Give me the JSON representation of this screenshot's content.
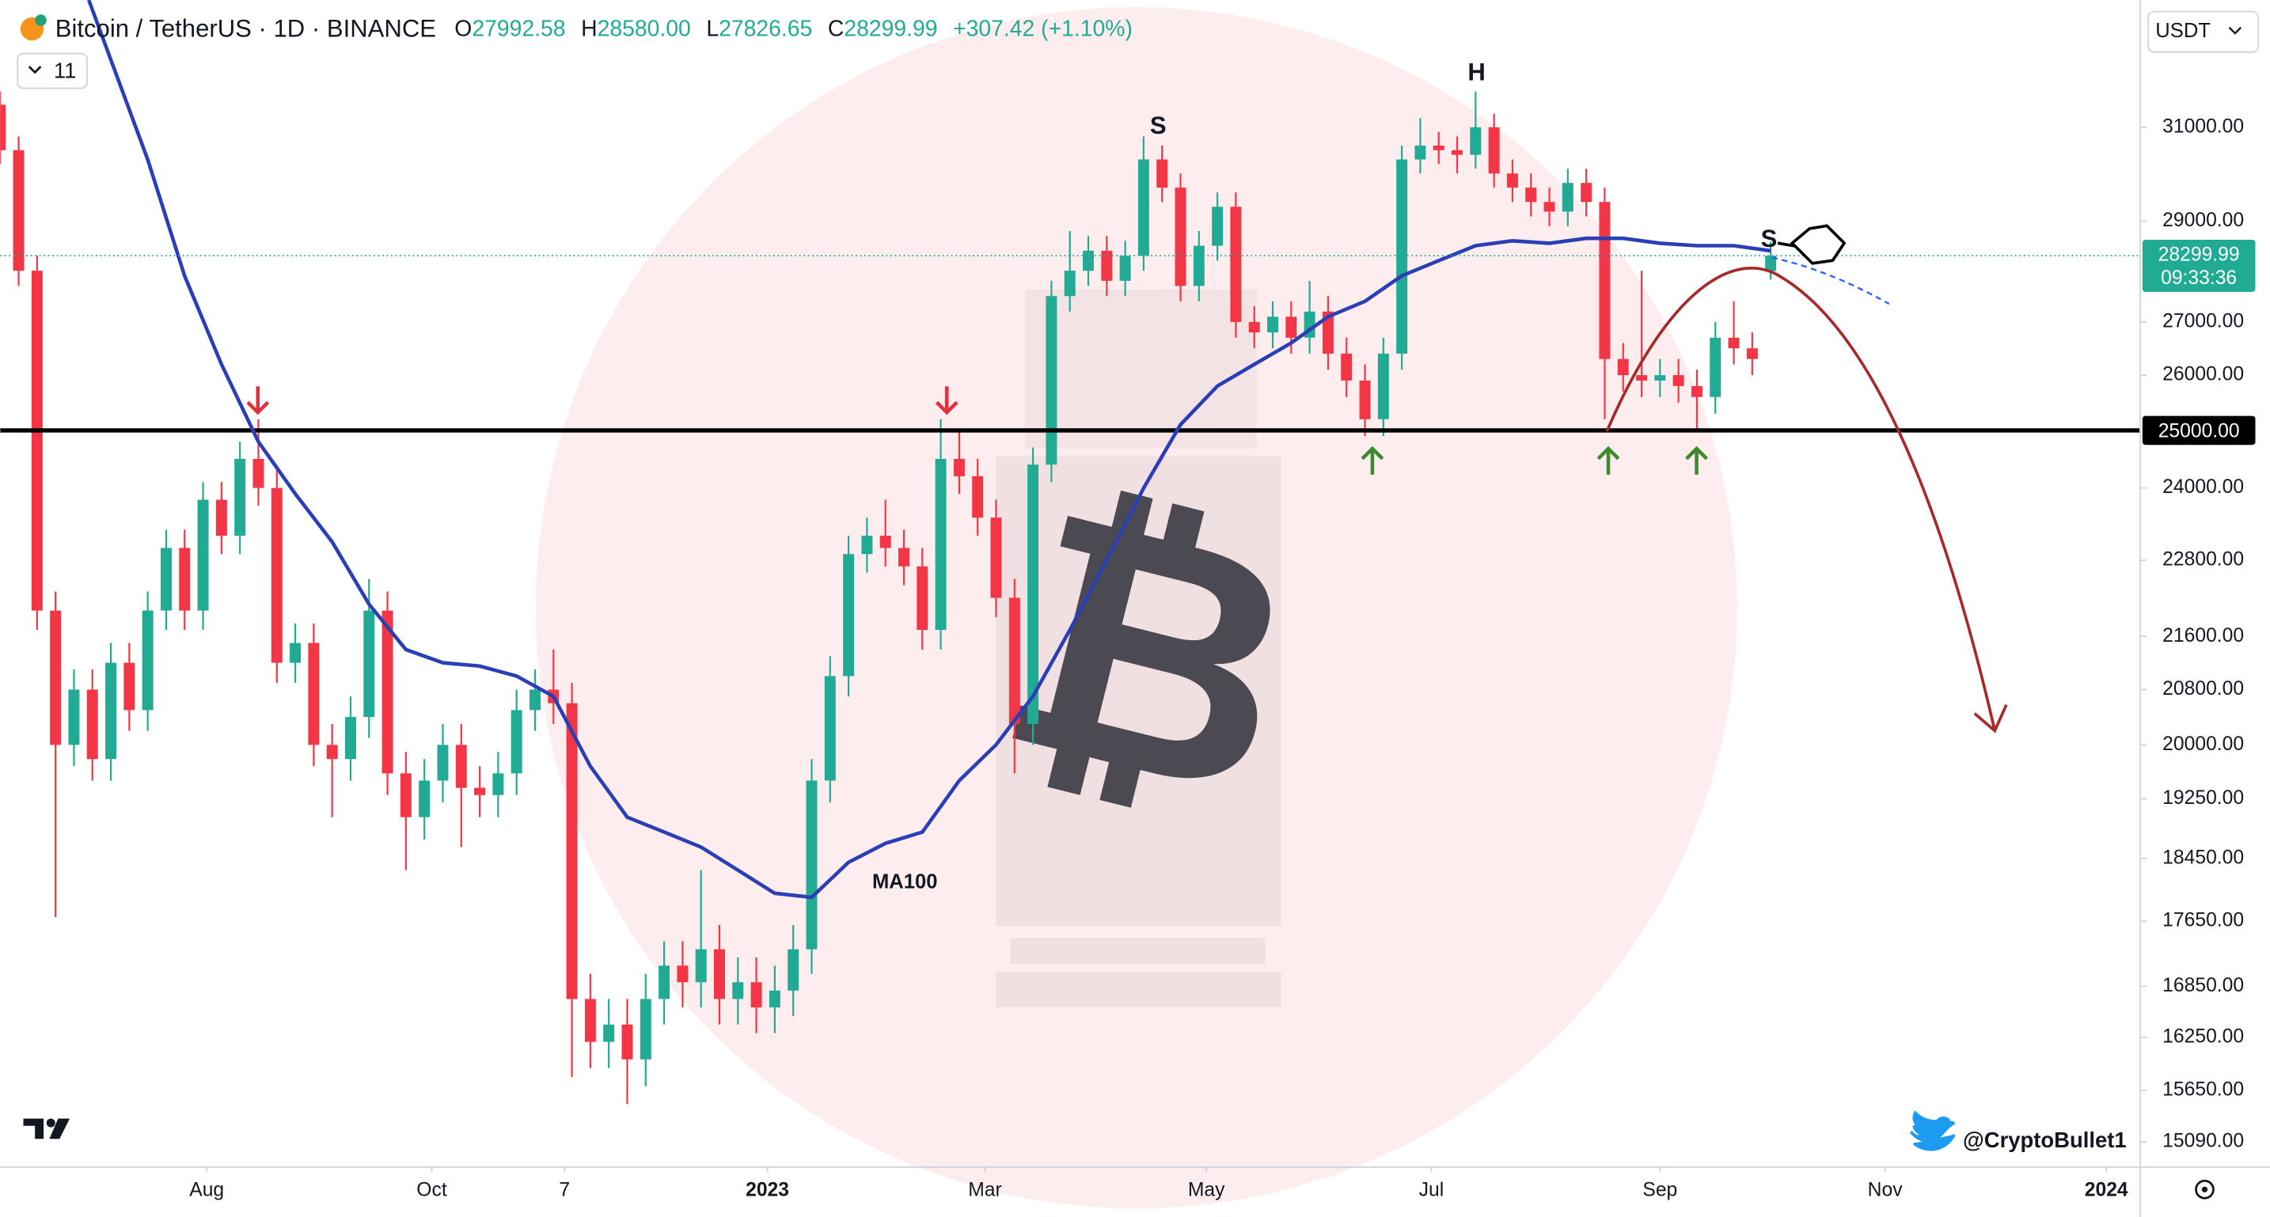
{
  "header": {
    "symbol": "Bitcoin / TetherUS · 1D · BINANCE",
    "open_key": "O",
    "open": "27992.58",
    "high_key": "H",
    "high": "28580.00",
    "low_key": "L",
    "low": "27826.65",
    "close_key": "C",
    "close": "28299.99",
    "change": "+307.42 (+1.10%)",
    "indicators_count": "11",
    "currency": "USDT",
    "watermark": "@CryptoBullet1"
  },
  "chart_data": {
    "type": "candlestick",
    "log_scale": true,
    "up_color": "#22ab94",
    "down_color": "#f23645",
    "x": [
      0,
      5,
      10,
      15,
      20,
      25,
      30,
      35,
      40,
      45,
      50,
      55,
      60,
      65,
      70,
      75,
      80,
      85,
      90,
      95,
      100,
      105,
      110,
      115,
      120,
      125,
      130,
      135,
      140,
      145,
      150,
      155,
      160,
      165,
      170,
      175,
      180,
      185,
      190,
      195,
      200,
      205,
      210,
      215,
      220,
      225,
      230,
      235,
      240,
      245,
      250,
      255,
      260,
      265,
      270,
      275,
      280,
      285,
      290,
      295,
      300,
      305,
      310,
      315,
      320,
      325,
      330,
      335,
      340,
      345,
      350,
      355,
      360,
      365,
      370,
      375,
      380,
      385,
      390,
      395,
      400,
      405,
      410,
      415,
      420,
      425,
      430,
      435,
      440,
      445,
      450,
      455,
      460,
      465,
      470,
      475,
      480
    ],
    "open": [
      31500,
      30500,
      28000,
      22000,
      20000,
      20800,
      19800,
      21200,
      20500,
      22000,
      23000,
      22000,
      23800,
      23200,
      24500,
      24000,
      21200,
      21500,
      20000,
      19800,
      20400,
      22000,
      19600,
      19000,
      19500,
      20000,
      19400,
      19300,
      19600,
      20500,
      20800,
      20600,
      16700,
      16200,
      16400,
      16000,
      16700,
      17100,
      16900,
      17300,
      16700,
      16900,
      16600,
      16800,
      17300,
      19500,
      21000,
      22900,
      23200,
      23000,
      22700,
      21700,
      24500,
      24200,
      23500,
      22200,
      20300,
      24400,
      27500,
      28000,
      28400,
      27800,
      28300,
      30300,
      29700,
      27700,
      28500,
      29300,
      27000,
      26800,
      27100,
      26700,
      27200,
      26400,
      25900,
      25200,
      26400,
      30300,
      30600,
      30500,
      30400,
      31000,
      30000,
      29700,
      29400,
      29200,
      29800,
      29400,
      26300,
      26000,
      25900,
      26000,
      25800,
      25600,
      26700,
      26500,
      27992.58
    ],
    "high": [
      31800,
      30800,
      28300,
      22300,
      21100,
      21100,
      21500,
      21500,
      22300,
      23300,
      23300,
      24100,
      24100,
      24800,
      25200,
      24300,
      21800,
      21800,
      20300,
      20700,
      22500,
      22300,
      19900,
      19800,
      20300,
      20300,
      19700,
      19900,
      20800,
      21100,
      21400,
      20900,
      17000,
      16700,
      16700,
      17000,
      17400,
      17400,
      18300,
      17600,
      17200,
      17200,
      17100,
      17600,
      19800,
      21300,
      23200,
      23500,
      23800,
      23300,
      23000,
      25200,
      25000,
      24500,
      23800,
      22500,
      24700,
      27800,
      28800,
      28700,
      28700,
      28600,
      30800,
      30600,
      30000,
      28800,
      29600,
      29600,
      27300,
      27400,
      27400,
      27800,
      27500,
      26700,
      26200,
      26700,
      30600,
      31200,
      30900,
      30800,
      31800,
      31300,
      30300,
      30000,
      29700,
      30100,
      30100,
      29700,
      26600,
      28000,
      26300,
      26300,
      26100,
      27000,
      27400,
      26800,
      28580
    ],
    "low": [
      30200,
      27700,
      21700,
      17700,
      19700,
      19500,
      19500,
      20200,
      20200,
      21700,
      21700,
      21700,
      22900,
      22900,
      23700,
      20900,
      20900,
      19700,
      19000,
      19500,
      20100,
      19300,
      18300,
      18700,
      19200,
      18600,
      19000,
      19000,
      19300,
      20200,
      20300,
      15800,
      15900,
      15900,
      15500,
      15700,
      16400,
      16600,
      16600,
      16400,
      16400,
      16300,
      16300,
      16500,
      17000,
      19200,
      20700,
      22600,
      22700,
      22400,
      21400,
      21400,
      23900,
      23200,
      21900,
      19600,
      20000,
      24100,
      27200,
      27700,
      27500,
      27500,
      28000,
      29400,
      27400,
      27400,
      28200,
      26700,
      26500,
      26500,
      26400,
      26400,
      26100,
      25600,
      24900,
      24900,
      26100,
      30000,
      30200,
      30000,
      30100,
      29700,
      29400,
      29100,
      28900,
      28900,
      29100,
      25200,
      25700,
      25600,
      25600,
      25500,
      25000,
      25300,
      26200,
      26000,
      27826.65
    ],
    "close": [
      30500,
      28000,
      22000,
      20000,
      20800,
      19800,
      21200,
      20500,
      22000,
      23000,
      22000,
      23800,
      23200,
      24500,
      24000,
      21200,
      21500,
      20000,
      19800,
      20400,
      22000,
      19600,
      19000,
      19500,
      20000,
      19400,
      19300,
      19600,
      20500,
      20800,
      20600,
      16700,
      16200,
      16400,
      16000,
      16700,
      17100,
      16900,
      17300,
      16700,
      16900,
      16600,
      16800,
      17300,
      19500,
      21000,
      22900,
      23200,
      23000,
      22700,
      21700,
      24500,
      24200,
      23500,
      22200,
      20300,
      24400,
      27500,
      28000,
      28400,
      27800,
      28300,
      30300,
      29700,
      27700,
      28500,
      29300,
      27000,
      26800,
      27100,
      26700,
      27200,
      26400,
      25900,
      25200,
      26400,
      30300,
      30600,
      30500,
      30400,
      31000,
      30000,
      29700,
      29400,
      29200,
      29800,
      29400,
      26300,
      26000,
      25900,
      26000,
      25800,
      25600,
      26700,
      26500,
      26300,
      28299.99
    ],
    "ma": {
      "name": "MA100",
      "color": "#2a3fb5",
      "x": [
        24,
        40,
        50,
        60,
        70,
        80,
        90,
        100,
        110,
        120,
        130,
        140,
        150,
        160,
        170,
        180,
        190,
        200,
        210,
        220,
        230,
        240,
        250,
        260,
        270,
        280,
        290,
        300,
        310,
        320,
        330,
        340,
        350,
        360,
        370,
        380,
        390,
        400,
        410,
        420,
        430,
        440,
        450,
        460,
        470,
        480
      ],
      "values": [
        33930,
        30300,
        27900,
        26200,
        24800,
        23900,
        23100,
        22100,
        21400,
        21200,
        21150,
        21000,
        20700,
        19700,
        19000,
        18800,
        18600,
        18300,
        18000,
        17950,
        18400,
        18650,
        18800,
        19500,
        20000,
        20700,
        21700,
        22800,
        24000,
        25100,
        25800,
        26200,
        26600,
        27100,
        27400,
        27900,
        28200,
        28500,
        28600,
        28550,
        28650,
        28650,
        28550,
        28500,
        28500,
        28400
      ]
    },
    "level": {
      "value": 25000,
      "label": "25000.00",
      "color": "#000000"
    },
    "last_price": {
      "label": "28299.99",
      "countdown": "09:33:36",
      "color": "#22ab94"
    },
    "pattern_labels": [
      "S",
      "H",
      "S"
    ],
    "xlim": [
      0,
      580
    ],
    "ylim": [
      14830,
      33930
    ],
    "xticks": [
      {
        "value": 56,
        "label": "Aug"
      },
      {
        "value": 117,
        "label": "Oct"
      },
      {
        "value": 153,
        "label": "7"
      },
      {
        "value": 208,
        "label": "2023"
      },
      {
        "value": 267,
        "label": "Mar"
      },
      {
        "value": 327,
        "label": "May"
      },
      {
        "value": 388,
        "label": "Jul"
      },
      {
        "value": 450,
        "label": "Sep"
      },
      {
        "value": 511,
        "label": "Nov"
      },
      {
        "value": 571,
        "label": "2024"
      }
    ],
    "yticks": [
      {
        "value": 31000,
        "label": "31000.00"
      },
      {
        "value": 29000,
        "label": "29000.00"
      },
      {
        "value": 27000,
        "label": "27000.00"
      },
      {
        "value": 26000,
        "label": "26000.00"
      },
      {
        "value": 24000,
        "label": "24000.00"
      },
      {
        "value": 22800,
        "label": "22800.00"
      },
      {
        "value": 21600,
        "label": "21600.00"
      },
      {
        "value": 20800,
        "label": "20800.00"
      },
      {
        "value": 20000,
        "label": "20000.00"
      },
      {
        "value": 19250,
        "label": "19250.00"
      },
      {
        "value": 18450,
        "label": "18450.00"
      },
      {
        "value": 17650,
        "label": "17650.00"
      },
      {
        "value": 16850,
        "label": "16850.00"
      },
      {
        "value": 16250,
        "label": "16250.00"
      },
      {
        "value": 15650,
        "label": "15650.00"
      },
      {
        "value": 15090,
        "label": "15090.00"
      }
    ]
  }
}
